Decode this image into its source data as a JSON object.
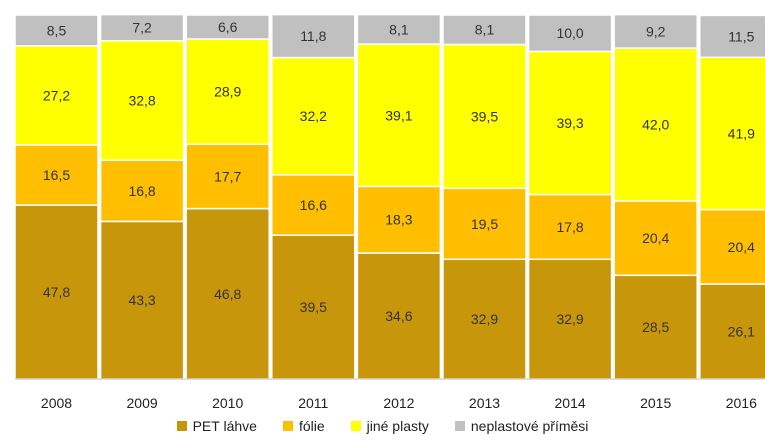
{
  "chart_data": {
    "type": "bar",
    "stacked": true,
    "categories": [
      "2008",
      "2009",
      "2010",
      "2011",
      "2012",
      "2013",
      "2014",
      "2015",
      "2016"
    ],
    "series": [
      {
        "name": "PET láhve",
        "color": "#C8960A",
        "values": [
          47.8,
          43.3,
          46.8,
          39.5,
          34.6,
          32.9,
          32.9,
          28.5,
          26.1
        ],
        "labels": [
          "47,8",
          "43,3",
          "46,8",
          "39,5",
          "34,6",
          "32,9",
          "32,9",
          "28,5",
          "26,1"
        ]
      },
      {
        "name": "fólie",
        "color": "#FFBE00",
        "values": [
          16.5,
          16.8,
          17.7,
          16.6,
          18.3,
          19.5,
          17.8,
          20.4,
          20.4
        ],
        "labels": [
          "16,5",
          "16,8",
          "17,7",
          "16,6",
          "18,3",
          "19,5",
          "17,8",
          "20,4",
          "20,4"
        ]
      },
      {
        "name": "jiné plasty",
        "color": "#FFFF00",
        "values": [
          27.2,
          32.8,
          28.9,
          32.2,
          39.1,
          39.5,
          39.3,
          42.0,
          41.9
        ],
        "labels": [
          "27,2",
          "32,8",
          "28,9",
          "32,2",
          "39,1",
          "39,5",
          "39,3",
          "42,0",
          "41,9"
        ]
      },
      {
        "name": "neplastové příměsi",
        "color": "#C0C0C0",
        "values": [
          8.5,
          7.2,
          6.6,
          11.8,
          8.1,
          8.1,
          10.0,
          9.2,
          11.5
        ],
        "labels": [
          "8,5",
          "7,2",
          "6,6",
          "11,8",
          "8,1",
          "8,1",
          "10,0",
          "9,2",
          "11,5"
        ]
      }
    ],
    "ylim": [
      0,
      100
    ],
    "title": "",
    "xlabel": "",
    "ylabel": "",
    "legend_position": "bottom"
  }
}
